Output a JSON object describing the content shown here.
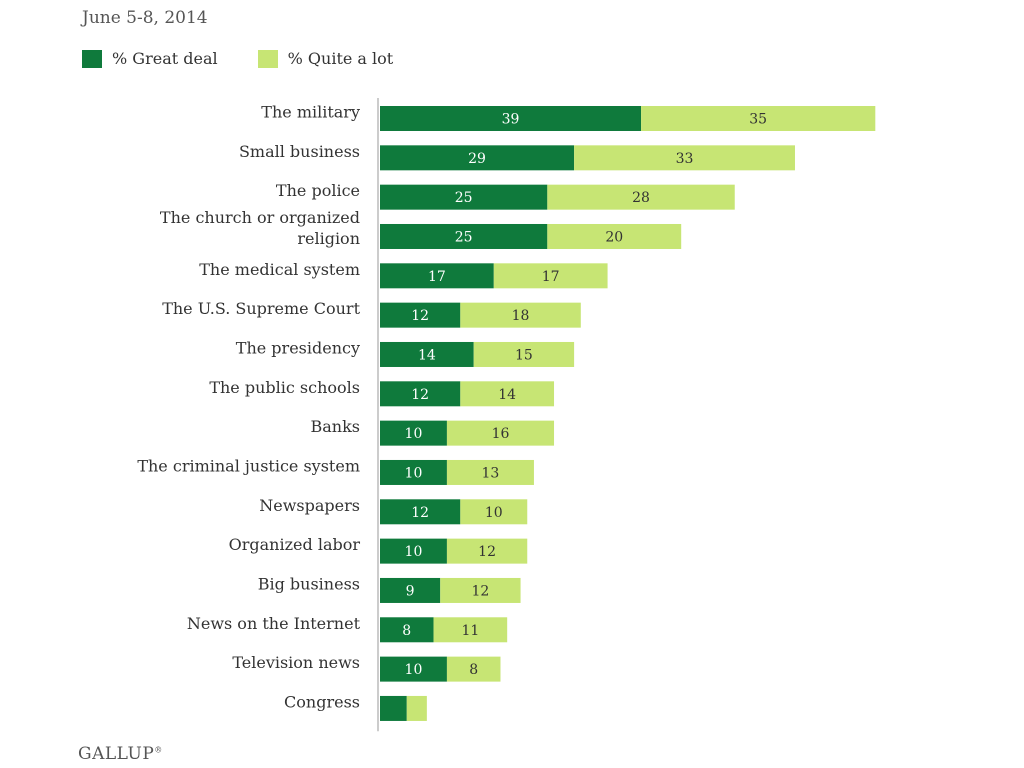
{
  "header": {
    "subtitle": "June 5-8, 2014"
  },
  "legend": {
    "series": [
      {
        "name": "% Great deal",
        "color": "#0f7a3c"
      },
      {
        "name": "% Quite a lot",
        "color": "#c7e574"
      }
    ]
  },
  "footer": {
    "brand": "GALLUP",
    "brand_mark": "®"
  },
  "chart_data": {
    "type": "bar",
    "orientation": "horizontal",
    "stacked": true,
    "title": "",
    "subtitle": "June 5-8, 2014",
    "xlabel": "",
    "ylabel": "",
    "xlim": [
      0,
      75
    ],
    "grid": false,
    "legend_position": "top-left",
    "categories": [
      [
        "The military"
      ],
      [
        "Small business"
      ],
      [
        "The police"
      ],
      [
        "The church or organized",
        "religion"
      ],
      [
        "The medical system"
      ],
      [
        "The U.S. Supreme Court"
      ],
      [
        "The presidency"
      ],
      [
        "The public schools"
      ],
      [
        "Banks"
      ],
      [
        "The criminal justice system"
      ],
      [
        "Newspapers"
      ],
      [
        "Organized labor"
      ],
      [
        "Big business"
      ],
      [
        "News on the Internet"
      ],
      [
        "Television news"
      ],
      [
        "Congress"
      ]
    ],
    "series": [
      {
        "name": "% Great deal",
        "color": "#0f7a3c",
        "values": [
          39,
          29,
          25,
          25,
          17,
          12,
          14,
          12,
          10,
          10,
          12,
          10,
          9,
          8,
          10,
          4
        ],
        "labels": [
          "39",
          "29",
          "25",
          "25",
          "17",
          "12",
          "14",
          "12",
          "10",
          "10",
          "12",
          "10",
          "9",
          "8",
          "10",
          ""
        ]
      },
      {
        "name": "% Quite a lot",
        "color": "#c7e574",
        "values": [
          35,
          33,
          28,
          20,
          17,
          18,
          15,
          14,
          16,
          13,
          10,
          12,
          12,
          11,
          8,
          3
        ],
        "labels": [
          "35",
          "33",
          "28",
          "20",
          "17",
          "18",
          "15",
          "14",
          "16",
          "13",
          "10",
          "12",
          "12",
          "11",
          "8",
          ""
        ]
      }
    ]
  }
}
